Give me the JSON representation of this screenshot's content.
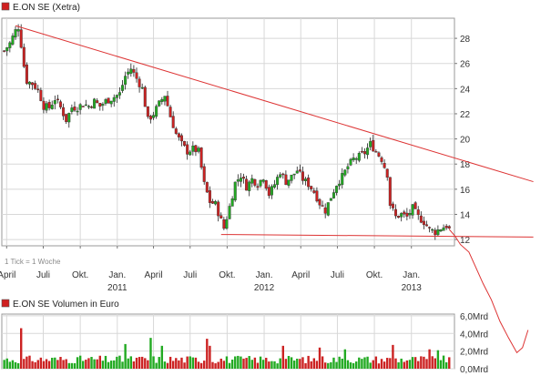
{
  "price_panel": {
    "legend_label": "E.ON SE (Xetra)",
    "note": "1 Tick = 1 Woche",
    "legend_color": "#d02020"
  },
  "volume_panel": {
    "legend_label": "E.ON SE Volumen in Euro",
    "legend_color": "#d02020"
  },
  "colors": {
    "up_candle": "#22aa22",
    "down_candle": "#cc2222",
    "trend_line": "#dd3333",
    "grid": "#d8d8d8",
    "axis_text": "#333333"
  },
  "chart_data": [
    {
      "type": "candlestick",
      "title": "E.ON SE (Xetra)",
      "y_ticks": [
        12,
        14,
        16,
        18,
        20,
        22,
        24,
        26,
        28
      ],
      "ylim": [
        11.5,
        29.6
      ],
      "x_tick_labels": [
        "April",
        "Juli",
        "Okt.",
        "Jan.",
        "April",
        "Juli",
        "Okt.",
        "Jan.",
        "April",
        "Juli",
        "Okt.",
        "Jan."
      ],
      "x_year_labels": [
        "2011",
        "2012",
        "2013"
      ],
      "grid": true,
      "annotation": "1 Tick = 1 Woche",
      "close_path": [
        [
          "2010-03-26",
          27.0
        ],
        [
          "2010-04-09",
          27.6
        ],
        [
          "2010-04-23",
          28.6
        ],
        [
          "2010-04-30",
          28.9
        ],
        [
          "2010-05-07",
          27.5
        ],
        [
          "2010-05-14",
          25.8
        ],
        [
          "2010-05-21",
          24.6
        ],
        [
          "2010-06-04",
          24.4
        ],
        [
          "2010-06-18",
          23.9
        ],
        [
          "2010-07-02",
          22.6
        ],
        [
          "2010-07-16",
          22.5
        ],
        [
          "2010-07-30",
          23.2
        ],
        [
          "2010-08-13",
          22.5
        ],
        [
          "2010-08-27",
          21.5
        ],
        [
          "2010-09-10",
          22.5
        ],
        [
          "2010-09-24",
          22.5
        ],
        [
          "2010-10-08",
          22.8
        ],
        [
          "2010-10-22",
          22.6
        ],
        [
          "2010-11-05",
          23.0
        ],
        [
          "2010-11-19",
          22.6
        ],
        [
          "2010-12-03",
          23.0
        ],
        [
          "2010-12-17",
          23.2
        ],
        [
          "2011-01-07",
          23.6
        ],
        [
          "2011-01-21",
          25.0
        ],
        [
          "2011-02-04",
          25.6
        ],
        [
          "2011-02-18",
          24.8
        ],
        [
          "2011-03-04",
          24.0
        ],
        [
          "2011-03-18",
          21.5
        ],
        [
          "2011-04-01",
          22.0
        ],
        [
          "2011-04-15",
          22.8
        ],
        [
          "2011-04-29",
          23.5
        ],
        [
          "2011-05-13",
          21.8
        ],
        [
          "2011-05-27",
          20.4
        ],
        [
          "2011-06-10",
          19.6
        ],
        [
          "2011-06-24",
          19.0
        ],
        [
          "2011-07-08",
          19.2
        ],
        [
          "2011-07-22",
          19.0
        ],
        [
          "2011-08-05",
          16.4
        ],
        [
          "2011-08-19",
          15.0
        ],
        [
          "2011-09-02",
          14.8
        ],
        [
          "2011-09-16",
          13.5
        ],
        [
          "2011-09-23",
          12.9
        ],
        [
          "2011-10-07",
          14.6
        ],
        [
          "2011-10-21",
          16.5
        ],
        [
          "2011-11-04",
          17.1
        ],
        [
          "2011-11-18",
          16.2
        ],
        [
          "2011-12-02",
          16.8
        ],
        [
          "2011-12-16",
          16.4
        ],
        [
          "2011-12-30",
          17.0
        ],
        [
          "2012-01-13",
          15.6
        ],
        [
          "2012-01-27",
          16.4
        ],
        [
          "2012-02-10",
          17.4
        ],
        [
          "2012-02-24",
          16.6
        ],
        [
          "2012-03-09",
          17.0
        ],
        [
          "2012-03-23",
          17.5
        ],
        [
          "2012-04-06",
          16.8
        ],
        [
          "2012-04-20",
          16.4
        ],
        [
          "2012-05-04",
          15.8
        ],
        [
          "2012-05-18",
          14.9
        ],
        [
          "2012-06-01",
          14.3
        ],
        [
          "2012-06-15",
          15.4
        ],
        [
          "2012-06-29",
          16.4
        ],
        [
          "2012-07-13",
          17.0
        ],
        [
          "2012-07-27",
          17.8
        ],
        [
          "2012-08-10",
          18.4
        ],
        [
          "2012-08-24",
          18.6
        ],
        [
          "2012-09-07",
          18.9
        ],
        [
          "2012-09-21",
          19.6
        ],
        [
          "2012-10-05",
          19.0
        ],
        [
          "2012-10-19",
          18.4
        ],
        [
          "2012-11-02",
          17.2
        ],
        [
          "2012-11-09",
          14.8
        ],
        [
          "2012-11-23",
          13.8
        ],
        [
          "2012-12-07",
          14.0
        ],
        [
          "2012-12-21",
          13.8
        ],
        [
          "2013-01-04",
          14.5
        ],
        [
          "2013-01-18",
          13.8
        ],
        [
          "2013-02-01",
          13.4
        ],
        [
          "2013-02-15",
          12.8
        ],
        [
          "2013-03-01",
          12.6
        ],
        [
          "2013-03-15",
          12.9
        ],
        [
          "2013-03-29",
          13.1
        ],
        [
          "2013-04-05",
          12.8
        ]
      ],
      "projection_path": [
        [
          "2013-04-05",
          12.8
        ],
        [
          "2013-04-19",
          12.3
        ],
        [
          "2013-05-03",
          11.6
        ],
        [
          "2013-05-24",
          11.0
        ],
        [
          "2013-06-07",
          10.0
        ],
        [
          "2013-06-28",
          8.5
        ],
        [
          "2013-07-19",
          7.2
        ],
        [
          "2013-08-09",
          5.5
        ],
        [
          "2013-08-30",
          4.2
        ],
        [
          "2013-09-20",
          3.0
        ],
        [
          "2013-10-04",
          3.4
        ],
        [
          "2013-10-18",
          4.8
        ]
      ],
      "trend_lines": [
        {
          "from": [
            "2010-04-23",
            29.0
          ],
          "to": [
            "2013-10-31",
            16.6
          ]
        },
        {
          "from": [
            "2011-09-16",
            12.4
          ],
          "to": [
            "2013-10-31",
            12.2
          ]
        }
      ]
    },
    {
      "type": "bar",
      "title": "E.ON SE Volumen in Euro",
      "y_tick_labels": [
        "0,0Mrd",
        "2,0Mrd",
        "4,0Mrd",
        "6,0Mrd"
      ],
      "y_ticks": [
        0,
        2,
        4,
        6
      ],
      "ylim": [
        0,
        6.2
      ],
      "unit": "Mrd",
      "spikes": [
        [
          "2010-05-07",
          4.6
        ],
        [
          "2011-01-21",
          2.8
        ],
        [
          "2011-03-25",
          3.5
        ],
        [
          "2011-04-22",
          2.6
        ],
        [
          "2011-08-12",
          3.4
        ],
        [
          "2011-08-19",
          2.6
        ],
        [
          "2012-02-17",
          2.6
        ],
        [
          "2012-05-18",
          2.4
        ],
        [
          "2012-07-20",
          2.2
        ],
        [
          "2012-11-16",
          2.7
        ],
        [
          "2013-02-15",
          2.2
        ],
        [
          "2013-03-08",
          2.1
        ]
      ]
    }
  ]
}
